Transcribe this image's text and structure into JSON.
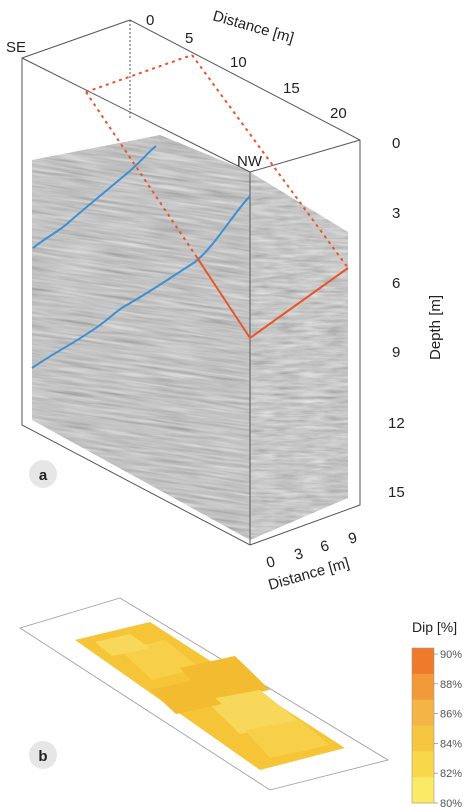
{
  "panel_a": {
    "label": "a",
    "orient_left": "SE",
    "orient_right": "NW",
    "top_axis": {
      "title": "Distance [m]",
      "ticks": [
        "0",
        "5",
        "10",
        "15",
        "20"
      ]
    },
    "depth_axis": {
      "title": "Depth [m]",
      "ticks": [
        "0",
        "3",
        "6",
        "9",
        "12",
        "15"
      ]
    },
    "bottom_axis": {
      "title": "Distance [m]",
      "ticks": [
        "0",
        "3",
        "6",
        "9"
      ]
    },
    "colors": {
      "horizon": "#3d8fd6",
      "fault": "#e8552a",
      "frame": "#555555"
    }
  },
  "panel_b": {
    "label": "b",
    "legend": {
      "title": "Dip [%]",
      "ticks": [
        "90%",
        "88%",
        "86%",
        "84%",
        "82%",
        "80%"
      ],
      "colors": [
        "#f07a2c",
        "#f29a3a",
        "#f4b446",
        "#f6c641",
        "#f8d84a",
        "#fbea66"
      ]
    },
    "surface_colors": [
      "#f5c537",
      "#f7cf48",
      "#f3bb2f",
      "#f8d85a"
    ]
  }
}
